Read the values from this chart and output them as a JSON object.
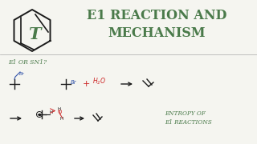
{
  "title_line1": "E1 REACTION AND",
  "title_line2": "MECHANISM",
  "title_color": "#4a7a4a",
  "title_fontsize": 11.5,
  "bg_color": "#f5f5f0",
  "logo_color": "#1a1a1a",
  "logo_letter_color": "#4a7a4a",
  "subtitle": "E1 OR SN1?",
  "subtitle_color": "#4a7a4a",
  "subtitle_fontsize": 5.5,
  "entropy_text": "ENTROPY OF\nE1 REACTIONS",
  "entropy_color": "#4a7a4a",
  "entropy_fontsize": 5.2,
  "chem_color_black": "#1a1a1a",
  "chem_color_blue": "#3355aa",
  "chem_color_red": "#cc2222"
}
